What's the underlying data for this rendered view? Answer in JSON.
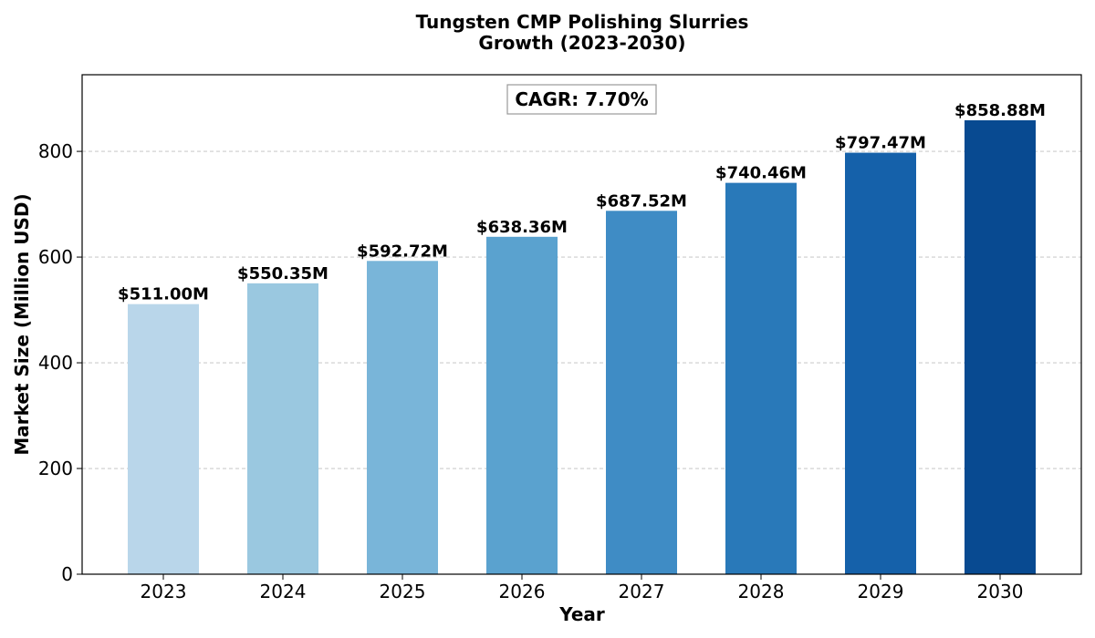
{
  "chart_data": {
    "type": "bar",
    "title_lines": [
      "Tungsten CMP Polishing Slurries",
      "Growth (2023-2030)"
    ],
    "xlabel": "Year",
    "ylabel": "Market Size (Million USD)",
    "categories": [
      "2023",
      "2024",
      "2025",
      "2026",
      "2027",
      "2028",
      "2029",
      "2030"
    ],
    "values": [
      511.0,
      550.35,
      592.72,
      638.36,
      687.52,
      740.46,
      797.47,
      858.88
    ],
    "data_labels": [
      "$511.00M",
      "$550.35M",
      "$592.72M",
      "$638.36M",
      "$687.52M",
      "$740.46M",
      "$797.47M",
      "$858.88M"
    ],
    "bar_colors": [
      "#b9d6ea",
      "#9ac8e0",
      "#79b5d9",
      "#5aa2cf",
      "#3f8cc5",
      "#2979b9",
      "#1561aa",
      "#084a91"
    ],
    "ylim": [
      0,
      945
    ],
    "yticks": [
      0,
      200,
      400,
      600,
      800
    ],
    "grid": "y-dashed",
    "annotation": "CAGR: 7.70%"
  }
}
